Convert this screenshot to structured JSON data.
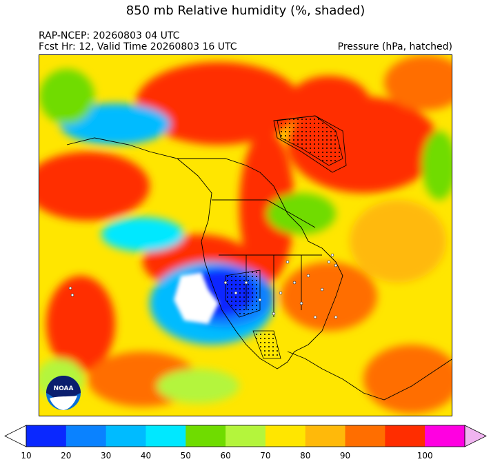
{
  "title": "850 mb Relative humidity (%, shaded)",
  "run_label": "RAP-NCEP: 20260803 04 UTC",
  "forecast_label": "Fcst Hr: 12, Valid Time 20260803 16 UTC",
  "overlay_label": "Pressure (hPa, hatched)",
  "logo_text": "NOAA",
  "colorbar": {
    "ticks": [
      "10",
      "20",
      "30",
      "40",
      "50",
      "60",
      "70",
      "80",
      "90",
      "100"
    ],
    "colors": [
      "#0a28ff",
      "#0a82ff",
      "#00bbff",
      "#00e8ff",
      "#6fdc00",
      "#b4f53c",
      "#ffe600",
      "#ffb90a",
      "#ff6e00",
      "#ff2d00",
      "#ff00e1"
    ],
    "under_color": "#ffffff",
    "over_color": "#f0b4f0"
  }
}
